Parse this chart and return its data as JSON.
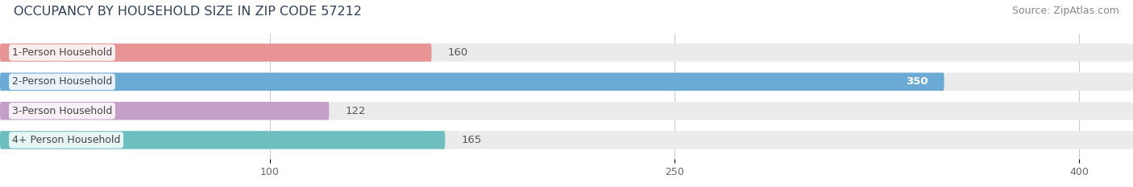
{
  "title": "OCCUPANCY BY HOUSEHOLD SIZE IN ZIP CODE 57212",
  "source": "Source: ZipAtlas.com",
  "categories": [
    "1-Person Household",
    "2-Person Household",
    "3-Person Household",
    "4+ Person Household"
  ],
  "values": [
    160,
    350,
    122,
    165
  ],
  "bar_colors": [
    "#E89494",
    "#6AAAD4",
    "#C4A0C8",
    "#6DBEBE"
  ],
  "xlim_max": 420,
  "xticks": [
    100,
    250,
    400
  ],
  "title_fontsize": 11.5,
  "source_fontsize": 9,
  "bar_label_fontsize": 9.5,
  "category_fontsize": 9,
  "tick_fontsize": 9,
  "title_color": "#2E4057",
  "source_color": "#888888",
  "category_color": "#444444",
  "label_outside_color": "#555555",
  "label_inside_color": "#FFFFFF",
  "bg_color": "#FFFFFF",
  "bar_bg_color": "#EBEBEB",
  "bar_height": 0.62,
  "inside_threshold": 300,
  "grid_color": "#CCCCCC"
}
